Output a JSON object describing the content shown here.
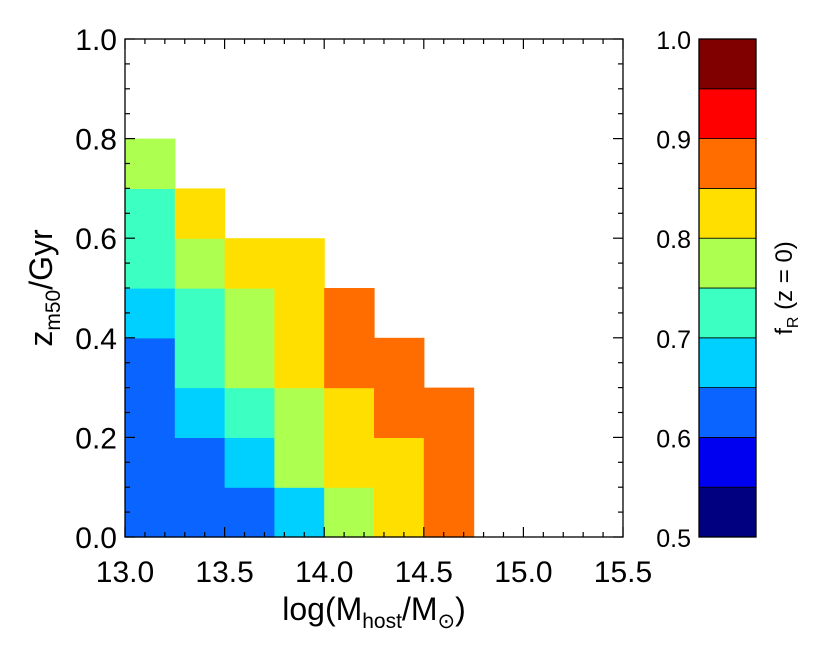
{
  "chart_data": [
    {
      "type": "heatmap",
      "x_label": {
        "pre": "log(M",
        "sub1": "host",
        "mid": "/M",
        "sub2": "⊙",
        "post": ")"
      },
      "y_label": {
        "pre": "z",
        "sub": "m50",
        "post": "/Gyr"
      },
      "x_range": [
        13.0,
        15.5
      ],
      "y_range": [
        0.0,
        1.0
      ],
      "x_ticks": [
        "13.0",
        "13.5",
        "14.0",
        "14.5",
        "15.0",
        "15.5"
      ],
      "y_ticks": [
        "0.0",
        "0.2",
        "0.4",
        "0.6",
        "0.8",
        "1.0"
      ],
      "bin_width_x": 0.25,
      "bin_height_y": 0.1,
      "cells": [
        {
          "x": 13.0,
          "y": 0.0,
          "v": 0.62
        },
        {
          "x": 13.0,
          "y": 0.1,
          "v": 0.62
        },
        {
          "x": 13.0,
          "y": 0.2,
          "v": 0.64
        },
        {
          "x": 13.0,
          "y": 0.3,
          "v": 0.64
        },
        {
          "x": 13.0,
          "y": 0.4,
          "v": 0.67
        },
        {
          "x": 13.0,
          "y": 0.5,
          "v": 0.72
        },
        {
          "x": 13.0,
          "y": 0.6,
          "v": 0.72
        },
        {
          "x": 13.0,
          "y": 0.7,
          "v": 0.77
        },
        {
          "x": 13.25,
          "y": 0.0,
          "v": 0.62
        },
        {
          "x": 13.25,
          "y": 0.1,
          "v": 0.64
        },
        {
          "x": 13.25,
          "y": 0.2,
          "v": 0.67
        },
        {
          "x": 13.25,
          "y": 0.3,
          "v": 0.72
        },
        {
          "x": 13.25,
          "y": 0.4,
          "v": 0.72
        },
        {
          "x": 13.25,
          "y": 0.5,
          "v": 0.77
        },
        {
          "x": 13.25,
          "y": 0.6,
          "v": 0.82
        },
        {
          "x": 13.5,
          "y": 0.0,
          "v": 0.64
        },
        {
          "x": 13.5,
          "y": 0.1,
          "v": 0.67
        },
        {
          "x": 13.5,
          "y": 0.2,
          "v": 0.72
        },
        {
          "x": 13.5,
          "y": 0.3,
          "v": 0.77
        },
        {
          "x": 13.5,
          "y": 0.4,
          "v": 0.77
        },
        {
          "x": 13.5,
          "y": 0.5,
          "v": 0.82
        },
        {
          "x": 13.75,
          "y": 0.0,
          "v": 0.67
        },
        {
          "x": 13.75,
          "y": 0.1,
          "v": 0.77
        },
        {
          "x": 13.75,
          "y": 0.2,
          "v": 0.77
        },
        {
          "x": 13.75,
          "y": 0.3,
          "v": 0.82
        },
        {
          "x": 13.75,
          "y": 0.4,
          "v": 0.82
        },
        {
          "x": 13.75,
          "y": 0.5,
          "v": 0.82
        },
        {
          "x": 14.0,
          "y": 0.0,
          "v": 0.77
        },
        {
          "x": 14.0,
          "y": 0.1,
          "v": 0.82
        },
        {
          "x": 14.0,
          "y": 0.2,
          "v": 0.82
        },
        {
          "x": 14.0,
          "y": 0.3,
          "v": 0.87
        },
        {
          "x": 14.0,
          "y": 0.4,
          "v": 0.87
        },
        {
          "x": 14.25,
          "y": 0.0,
          "v": 0.82
        },
        {
          "x": 14.25,
          "y": 0.1,
          "v": 0.82
        },
        {
          "x": 14.25,
          "y": 0.2,
          "v": 0.87
        },
        {
          "x": 14.25,
          "y": 0.3,
          "v": 0.87
        },
        {
          "x": 14.5,
          "y": 0.0,
          "v": 0.87
        },
        {
          "x": 14.5,
          "y": 0.1,
          "v": 0.87
        },
        {
          "x": 14.5,
          "y": 0.2,
          "v": 0.87
        }
      ],
      "colorbar": {
        "label": {
          "pre": "f",
          "sub": "R",
          "post": " (z = 0)"
        },
        "range": [
          0.5,
          1.0
        ],
        "ticks": [
          "0.5",
          "0.6",
          "0.7",
          "0.8",
          "0.9",
          "1.0"
        ],
        "bins": [
          {
            "min": 0.5,
            "max": 0.55,
            "color": "#000080"
          },
          {
            "min": 0.55,
            "max": 0.6,
            "color": "#0000F0"
          },
          {
            "min": 0.6,
            "max": 0.65,
            "color": "#0A64FF"
          },
          {
            "min": 0.65,
            "max": 0.7,
            "color": "#00D0FF"
          },
          {
            "min": 0.7,
            "max": 0.75,
            "color": "#3CFFC2"
          },
          {
            "min": 0.75,
            "max": 0.8,
            "color": "#ADFF50"
          },
          {
            "min": 0.8,
            "max": 0.85,
            "color": "#FFDF00"
          },
          {
            "min": 0.85,
            "max": 0.9,
            "color": "#FF6C00"
          },
          {
            "min": 0.9,
            "max": 0.95,
            "color": "#FF0000"
          },
          {
            "min": 0.95,
            "max": 1.0,
            "color": "#800000"
          }
        ]
      }
    }
  ]
}
